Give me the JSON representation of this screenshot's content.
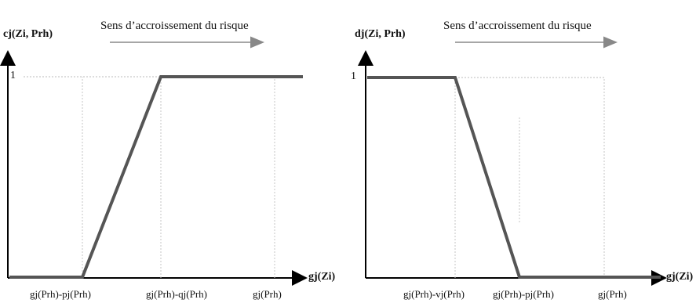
{
  "panels": [
    {
      "id": "concordance",
      "y_label": "cj(Zi, Prh)",
      "x_label": "gj(Zi)",
      "one_label": "1",
      "arrow_text": "Sens d’accroissement du risque",
      "ticks": [
        "gj(Prh)-pj(Prh)",
        "gj(Prh)-qj(Prh)",
        "gj(Prh)"
      ]
    },
    {
      "id": "discordance",
      "y_label": "dj(Zi, Prh)",
      "x_label": "gj(Zi)",
      "one_label": "1",
      "arrow_text": "Sens d’accroissement du risque",
      "ticks": [
        "gj(Prh)-vj(Prh)",
        "gj(Prh)-pj(Prh)",
        "gj(Prh)"
      ]
    }
  ]
}
